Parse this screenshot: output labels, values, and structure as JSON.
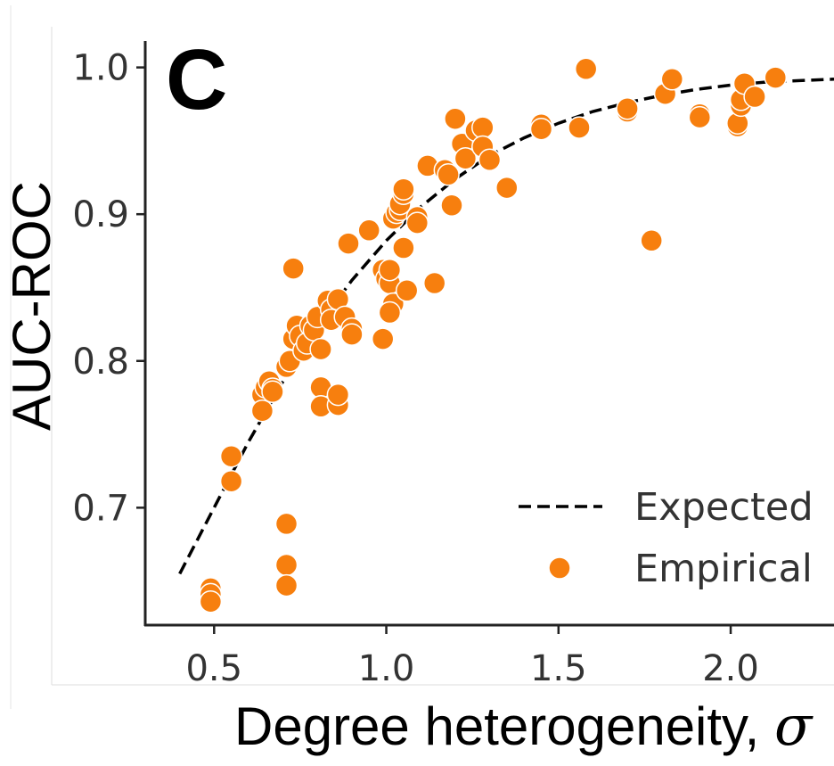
{
  "panel_label": "C",
  "colors": {
    "empirical": "#f77f0e",
    "expected": "#000000",
    "axis": "#222222",
    "tick_text": "#333333"
  },
  "chart_data": {
    "type": "scatter",
    "xlabel": "Degree heterogeneity, ",
    "xlabel_symbol": "σ",
    "ylabel": "AUC-ROC",
    "xlim": [
      0.3,
      2.3
    ],
    "ylim": [
      0.62,
      1.018
    ],
    "x_ticks": [
      0.5,
      1.0,
      1.5,
      2.0
    ],
    "x_tick_labels": [
      "0.5",
      "1.0",
      "1.5",
      "2.0"
    ],
    "y_ticks": [
      0.7,
      0.8,
      0.9,
      1.0
    ],
    "y_tick_labels": [
      "0.7",
      "0.8",
      "0.9",
      "1.0"
    ],
    "grid": false,
    "legend_position": "lower-right",
    "series": [
      {
        "name": "Expected",
        "kind": "line",
        "style": "dashed",
        "points": [
          [
            0.4,
            0.655
          ],
          [
            0.5,
            0.7
          ],
          [
            0.6,
            0.745
          ],
          [
            0.7,
            0.786
          ],
          [
            0.8,
            0.823
          ],
          [
            0.9,
            0.855
          ],
          [
            1.0,
            0.882
          ],
          [
            1.1,
            0.905
          ],
          [
            1.2,
            0.924
          ],
          [
            1.3,
            0.94
          ],
          [
            1.4,
            0.952
          ],
          [
            1.5,
            0.962
          ],
          [
            1.6,
            0.97
          ],
          [
            1.7,
            0.976
          ],
          [
            1.8,
            0.981
          ],
          [
            1.9,
            0.985
          ],
          [
            2.0,
            0.988
          ],
          [
            2.1,
            0.99
          ],
          [
            2.2,
            0.991
          ],
          [
            2.3,
            0.992
          ]
        ]
      },
      {
        "name": "Empirical",
        "kind": "scatter",
        "points": [
          [
            0.49,
            0.645
          ],
          [
            0.49,
            0.641
          ],
          [
            0.49,
            0.636
          ],
          [
            0.55,
            0.735
          ],
          [
            0.55,
            0.718
          ],
          [
            0.64,
            0.777
          ],
          [
            0.65,
            0.782
          ],
          [
            0.64,
            0.766
          ],
          [
            0.66,
            0.786
          ],
          [
            0.67,
            0.781
          ],
          [
            0.67,
            0.779
          ],
          [
            0.71,
            0.689
          ],
          [
            0.71,
            0.661
          ],
          [
            0.71,
            0.647
          ],
          [
            0.73,
            0.863
          ],
          [
            0.71,
            0.796
          ],
          [
            0.72,
            0.8
          ],
          [
            0.73,
            0.815
          ],
          [
            0.74,
            0.824
          ],
          [
            0.75,
            0.817
          ],
          [
            0.76,
            0.807
          ],
          [
            0.77,
            0.812
          ],
          [
            0.78,
            0.824
          ],
          [
            0.79,
            0.821
          ],
          [
            0.8,
            0.83
          ],
          [
            0.81,
            0.808
          ],
          [
            0.81,
            0.782
          ],
          [
            0.81,
            0.769
          ],
          [
            0.83,
            0.841
          ],
          [
            0.84,
            0.835
          ],
          [
            0.84,
            0.828
          ],
          [
            0.86,
            0.842
          ],
          [
            0.86,
            0.77
          ],
          [
            0.86,
            0.777
          ],
          [
            0.88,
            0.83
          ],
          [
            0.89,
            0.88
          ],
          [
            0.9,
            0.822
          ],
          [
            0.9,
            0.818
          ],
          [
            0.95,
            0.889
          ],
          [
            0.99,
            0.815
          ],
          [
            0.99,
            0.862
          ],
          [
            1.0,
            0.856
          ],
          [
            1.01,
            0.853
          ],
          [
            1.01,
            0.862
          ],
          [
            1.02,
            0.839
          ],
          [
            1.01,
            0.833
          ],
          [
            1.02,
            0.897
          ],
          [
            1.03,
            0.901
          ],
          [
            1.04,
            0.903
          ],
          [
            1.04,
            0.907
          ],
          [
            1.05,
            0.914
          ],
          [
            1.05,
            0.917
          ],
          [
            1.05,
            0.877
          ],
          [
            1.06,
            0.848
          ],
          [
            1.09,
            0.898
          ],
          [
            1.09,
            0.894
          ],
          [
            1.12,
            0.933
          ],
          [
            1.14,
            0.853
          ],
          [
            1.17,
            0.93
          ],
          [
            1.18,
            0.927
          ],
          [
            1.19,
            0.906
          ],
          [
            1.2,
            0.965
          ],
          [
            1.22,
            0.948
          ],
          [
            1.23,
            0.938
          ],
          [
            1.26,
            0.957
          ],
          [
            1.28,
            0.959
          ],
          [
            1.28,
            0.946
          ],
          [
            1.3,
            0.937
          ],
          [
            1.35,
            0.918
          ],
          [
            1.45,
            0.961
          ],
          [
            1.45,
            0.958
          ],
          [
            1.58,
            0.999
          ],
          [
            1.56,
            0.959
          ],
          [
            1.7,
            0.97
          ],
          [
            1.7,
            0.972
          ],
          [
            1.77,
            0.882
          ],
          [
            1.81,
            0.982
          ],
          [
            1.83,
            0.992
          ],
          [
            1.91,
            0.968
          ],
          [
            1.91,
            0.966
          ],
          [
            2.02,
            0.96
          ],
          [
            2.02,
            0.962
          ],
          [
            2.03,
            0.974
          ],
          [
            2.03,
            0.978
          ],
          [
            2.04,
            0.989
          ],
          [
            2.07,
            0.98
          ],
          [
            2.13,
            0.993
          ]
        ]
      }
    ]
  }
}
